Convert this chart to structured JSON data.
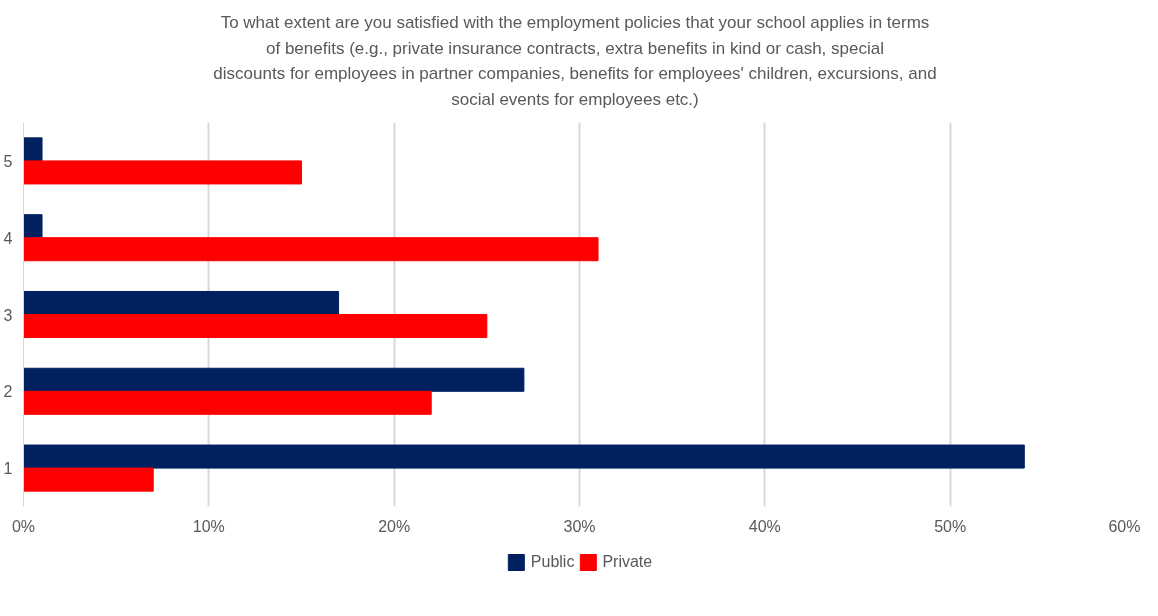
{
  "chart_data": {
    "type": "bar",
    "orientation": "horizontal",
    "title": "To what extent are you satisfied with the employment policies that your school applies in terms of benefits (e.g., private insurance contracts, extra benefits in kind or cash, special discounts for employees in partner companies, benefits for employees' children, excursions, and social events for employees etc.)",
    "categories": [
      "5",
      "4",
      "3",
      "2",
      "1"
    ],
    "series": [
      {
        "name": "Public",
        "color": "#002060",
        "values": [
          1,
          1,
          17,
          27,
          54
        ]
      },
      {
        "name": "Private",
        "color": "#ff0000",
        "values": [
          15,
          31,
          25,
          22,
          7
        ]
      }
    ],
    "xlim": [
      0,
      60
    ],
    "xticks": [
      {
        "value": 0,
        "label": "0%"
      },
      {
        "value": 10,
        "label": "10%"
      },
      {
        "value": 20,
        "label": "20%"
      },
      {
        "value": 30,
        "label": "30%"
      },
      {
        "value": 40,
        "label": "40%"
      },
      {
        "value": 50,
        "label": "50%"
      },
      {
        "value": 60,
        "label": "60%"
      }
    ],
    "grid": "x",
    "legend": "bottom"
  }
}
